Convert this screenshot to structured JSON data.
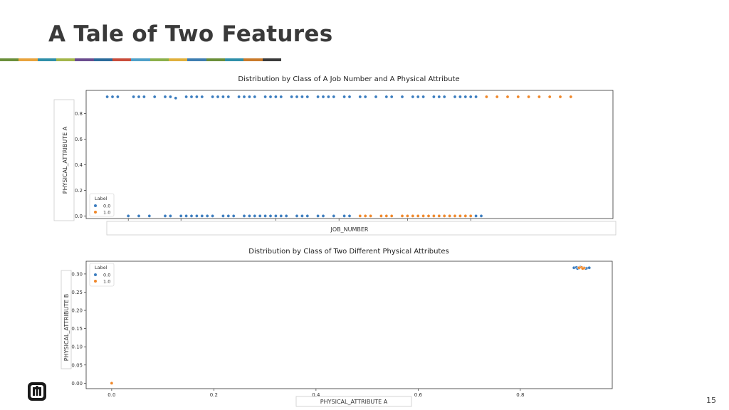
{
  "slide": {
    "title": "A Tale of Two Features",
    "page_number": "15",
    "title_bar_colors": [
      "#6a8f3a",
      "#e8a33c",
      "#2f8fa8",
      "#a3b64b",
      "#6a4c8e",
      "#2a6a9a",
      "#c94c3a",
      "#4ea0c8",
      "#8bb04a",
      "#e0b03c",
      "#3e7db0",
      "#6a8f3a",
      "#2f8fa8",
      "#c97a2a",
      "#3a3a3a"
    ]
  },
  "colors": {
    "class0": "#3b7dbf",
    "class1": "#f0882a"
  },
  "chart_data": [
    {
      "type": "scatter",
      "title": "Distribution by Class of A Job Number and A Physical Attribute",
      "xlabel": "JOB_NUMBER",
      "ylabel": "PHYSICAL_ATTRIBUTE A",
      "yticks": [
        "0.0",
        "0.2",
        "0.4",
        "0.6",
        "0.8"
      ],
      "yticks_values": [
        0.0,
        0.2,
        0.4,
        0.6,
        0.8
      ],
      "ylim": [
        -0.02,
        0.98
      ],
      "xlim": [
        0,
        1
      ],
      "xticks_hidden": true,
      "grid": false,
      "legend": {
        "title": "Label",
        "position": "lower-left",
        "entries": [
          "0.0",
          "1.0"
        ]
      },
      "series": [
        {
          "name": "0.0",
          "x": [
            0.04,
            0.05,
            0.06,
            0.09,
            0.1,
            0.11,
            0.13,
            0.15,
            0.16,
            0.17,
            0.19,
            0.2,
            0.21,
            0.22,
            0.24,
            0.25,
            0.26,
            0.27,
            0.29,
            0.3,
            0.31,
            0.32,
            0.34,
            0.35,
            0.36,
            0.37,
            0.39,
            0.4,
            0.41,
            0.42,
            0.44,
            0.45,
            0.46,
            0.47,
            0.49,
            0.5,
            0.52,
            0.53,
            0.55,
            0.57,
            0.58,
            0.6,
            0.62,
            0.63,
            0.64,
            0.66,
            0.67,
            0.68,
            0.7,
            0.71,
            0.72,
            0.73,
            0.74,
            0.08,
            0.1,
            0.12,
            0.15,
            0.16,
            0.18,
            0.19,
            0.2,
            0.21,
            0.22,
            0.23,
            0.24,
            0.26,
            0.27,
            0.28,
            0.3,
            0.31,
            0.32,
            0.33,
            0.34,
            0.35,
            0.36,
            0.37,
            0.38,
            0.4,
            0.41,
            0.42,
            0.44,
            0.45,
            0.47,
            0.49,
            0.5,
            0.66,
            0.67,
            0.68,
            0.69,
            0.7,
            0.71,
            0.72,
            0.73,
            0.74,
            0.75
          ],
          "y": [
            0.93,
            0.93,
            0.93,
            0.93,
            0.93,
            0.93,
            0.93,
            0.93,
            0.93,
            0.92,
            0.93,
            0.93,
            0.93,
            0.93,
            0.93,
            0.93,
            0.93,
            0.93,
            0.93,
            0.93,
            0.93,
            0.93,
            0.93,
            0.93,
            0.93,
            0.93,
            0.93,
            0.93,
            0.93,
            0.93,
            0.93,
            0.93,
            0.93,
            0.93,
            0.93,
            0.93,
            0.93,
            0.93,
            0.93,
            0.93,
            0.93,
            0.93,
            0.93,
            0.93,
            0.93,
            0.93,
            0.93,
            0.93,
            0.93,
            0.93,
            0.93,
            0.93,
            0.93,
            0.0,
            0.0,
            0.0,
            0.0,
            0.0,
            0.0,
            0.0,
            0.0,
            0.0,
            0.0,
            0.0,
            0.0,
            0.0,
            0.0,
            0.0,
            0.0,
            0.0,
            0.0,
            0.0,
            0.0,
            0.0,
            0.0,
            0.0,
            0.0,
            0.0,
            0.0,
            0.0,
            0.0,
            0.0,
            0.0,
            0.0,
            0.0,
            0.0,
            0.0,
            0.0,
            0.0,
            0.0,
            0.0,
            0.0,
            0.0,
            0.0,
            0.0
          ]
        },
        {
          "name": "1.0",
          "x": [
            0.76,
            0.78,
            0.8,
            0.82,
            0.84,
            0.86,
            0.88,
            0.9,
            0.92,
            0.52,
            0.53,
            0.54,
            0.56,
            0.57,
            0.58,
            0.6,
            0.61,
            0.62,
            0.63,
            0.64,
            0.65,
            0.66,
            0.67,
            0.68,
            0.69,
            0.7,
            0.71,
            0.72,
            0.73
          ],
          "y": [
            0.93,
            0.93,
            0.93,
            0.93,
            0.93,
            0.93,
            0.93,
            0.93,
            0.93,
            0.0,
            0.0,
            0.0,
            0.0,
            0.0,
            0.0,
            0.0,
            0.0,
            0.0,
            0.0,
            0.0,
            0.0,
            0.0,
            0.0,
            0.0,
            0.0,
            0.0,
            0.0,
            0.0,
            0.0
          ]
        }
      ]
    },
    {
      "type": "scatter",
      "title": "Distribution by Class of Two Different Physical Attributes",
      "xlabel": "PHYSICAL_ATTRIBUTE A",
      "ylabel": "PHYSICAL_ATTRIBUTE B",
      "xticks": [
        "0.0",
        "0.2",
        "0.4",
        "0.6",
        "0.8"
      ],
      "xticks_values": [
        0.0,
        0.2,
        0.4,
        0.6,
        0.8
      ],
      "yticks": [
        "0.00",
        "0.05",
        "0.10",
        "0.15",
        "0.20",
        "0.25",
        "0.30"
      ],
      "yticks_values": [
        0.0,
        0.05,
        0.1,
        0.15,
        0.2,
        0.25,
        0.3
      ],
      "xlim": [
        -0.05,
        0.98
      ],
      "ylim": [
        -0.015,
        0.335
      ],
      "grid": false,
      "legend": {
        "title": "Label",
        "position": "upper-left",
        "entries": [
          "0.0",
          "1.0"
        ]
      },
      "series": [
        {
          "name": "0.0",
          "x": [
            0.905,
            0.91,
            0.915,
            0.92,
            0.925,
            0.93,
            0.935,
            0.912,
            0.918,
            0.928
          ],
          "y": [
            0.317,
            0.318,
            0.316,
            0.318,
            0.317,
            0.316,
            0.317,
            0.315,
            0.319,
            0.315
          ]
        },
        {
          "name": "1.0",
          "x": [
            0.0,
            0.915,
            0.92,
            0.925,
            0.922
          ],
          "y": [
            0.0,
            0.317,
            0.318,
            0.316,
            0.315
          ]
        }
      ]
    }
  ]
}
